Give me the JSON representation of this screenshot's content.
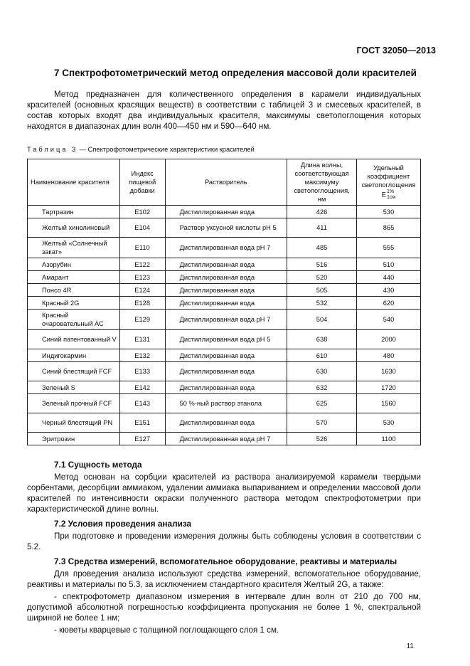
{
  "header": "ГОСТ 32050—2013",
  "section_title": "7 Спектрофотометрический метод определения массовой доли красителей",
  "intro": "Метод предназначен для количественного определения в карамели индивидуальных красителей (основных красящих веществ) в соответствии с таблицей 3 и смесевых красителей, в состав которых входят два индивидуальных красителя, максимумы светопоглощения которых находятся в диапазонах длин волн 400—450 нм и 590—640 нм.",
  "table": {
    "caption_label": "Таблица 3",
    "caption_text": " — Спектрофотометрические характеристики красителей",
    "headers": [
      "Наименование красителя",
      "Индекс пищевой добавки",
      "Растворитель",
      "Длина волны, соответствующая максимуму светопоглощения, нм",
      "Удельный коэффициент светопоглощения E"
    ],
    "header_sup": "1%",
    "header_sub": "1см",
    "rows": [
      [
        "Тартразин",
        "E102",
        "Дистиллированная вода",
        "426",
        "530"
      ],
      [
        "Желтый хинолиновый",
        "E104",
        "Раствор уксусной кислоты pH 5",
        "411",
        "865"
      ],
      [
        "Желтый «Солнечный закат»",
        "E110",
        "Дистиллированная вода pH 7",
        "485",
        "555"
      ],
      [
        "Азорубин",
        "E122",
        "Дистиллированная вода",
        "516",
        "510"
      ],
      [
        "Амарант",
        "E123",
        "Дистиллированная вода",
        "520",
        "440"
      ],
      [
        "Понсо 4R",
        "E124",
        "Дистиллированная вода",
        "505",
        "430"
      ],
      [
        "Красный 2G",
        "E128",
        "Дистиллированная вода",
        "532",
        "620"
      ],
      [
        "Красный очаровательный АС",
        "E129",
        "Дистиллированная вода pH 7",
        "504",
        "540"
      ],
      [
        "Синий патентованный V",
        "E131",
        "Дистиллированная вода pH 5",
        "638",
        "2000"
      ],
      [
        "Индигокармин",
        "E132",
        "Дистиллированная вода",
        "610",
        "480"
      ],
      [
        "Синий блестящий FCF",
        "E133",
        "Дистиллированная вода",
        "630",
        "1630"
      ],
      [
        "Зеленый S",
        "E142",
        "Дистиллированная вода",
        "632",
        "1720"
      ],
      [
        "Зеленый прочный FCF",
        "E143",
        "50 %-ный раствор этанола",
        "625",
        "1560"
      ],
      [
        "Черный блестящий PN",
        "E151",
        "Дистиллированная вода",
        "570",
        "530"
      ],
      [
        "Эритрозин",
        "E127",
        "Дистиллированная вода pH 7",
        "526",
        "1100"
      ]
    ]
  },
  "s71_title": "7.1 Сущность метода",
  "s71_text": "Метод основан на сорбции красителей из раствора анализируемой карамели твердыми сорбентами, десорбции аммиаком, удалении аммиака выпариванием и определении массовой доли красителей по интенсивности окраски полученного раствора методом спектрофотометрии при характеристической длине волны.",
  "s72_title": "7.2 Условия проведения анализа",
  "s72_text": "При подготовке и проведении измерения должны быть соблюдены условия в соответствии с 5.2.",
  "s73_title": "7.3 Средства измерений, вспомогательное оборудование, реактивы и материалы",
  "s73_text": "Для проведения анализа используют средства измерений, вспомогательное оборудование, реактивы и материалы по 5.3, за исключением стандартного красителя Желтый 2G, а также:",
  "s73_item1": "- спектрофотометр диапазоном измерения в интервале длин волн от 210 до 700 нм, допустимой абсолютной погрешностью коэффициента пропускания не более 1 %, спектральной шириной не более 1 нм;",
  "s73_item2": "- кюветы кварцевые с толщиной поглощающего слоя 1 см.",
  "page_number": "11"
}
